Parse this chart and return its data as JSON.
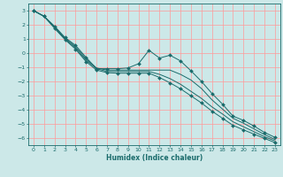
{
  "xlabel": "Humidex (Indice chaleur)",
  "bg_color": "#cce8e8",
  "grid_color": "#ff9999",
  "line_color": "#1a6b6b",
  "xlim": [
    -0.5,
    23.5
  ],
  "ylim": [
    -6.5,
    3.5
  ],
  "yticks": [
    3,
    2,
    1,
    0,
    -1,
    -2,
    -3,
    -4,
    -5,
    -6
  ],
  "xticks": [
    0,
    1,
    2,
    3,
    4,
    5,
    6,
    7,
    8,
    9,
    10,
    11,
    12,
    13,
    14,
    15,
    16,
    17,
    18,
    19,
    20,
    21,
    22,
    23
  ],
  "series": [
    [
      3.0,
      2.6,
      1.9,
      1.1,
      0.55,
      -0.3,
      -1.1,
      -1.1,
      -1.1,
      -1.05,
      -0.75,
      0.2,
      -0.35,
      -0.15,
      -0.55,
      -1.25,
      -2.0,
      -2.85,
      -3.6,
      -4.45,
      -4.75,
      -5.15,
      -5.6,
      -5.95
    ],
    [
      3.0,
      2.6,
      1.85,
      1.05,
      0.45,
      -0.4,
      -1.05,
      -1.2,
      -1.2,
      -1.2,
      -1.2,
      -1.2,
      -1.2,
      -1.2,
      -1.5,
      -1.9,
      -2.5,
      -3.3,
      -3.95,
      -4.6,
      -4.95,
      -5.35,
      -5.75,
      -6.1
    ],
    [
      3.0,
      2.6,
      1.8,
      1.0,
      0.35,
      -0.5,
      -1.1,
      -1.3,
      -1.3,
      -1.3,
      -1.3,
      -1.3,
      -1.5,
      -1.8,
      -2.2,
      -2.7,
      -3.2,
      -3.8,
      -4.3,
      -4.85,
      -5.2,
      -5.55,
      -5.9,
      -6.2
    ],
    [
      3.0,
      2.6,
      1.75,
      0.95,
      0.28,
      -0.6,
      -1.2,
      -1.38,
      -1.42,
      -1.42,
      -1.42,
      -1.42,
      -1.72,
      -2.1,
      -2.52,
      -3.02,
      -3.52,
      -4.1,
      -4.6,
      -5.1,
      -5.42,
      -5.72,
      -6.02,
      -6.32
    ]
  ]
}
